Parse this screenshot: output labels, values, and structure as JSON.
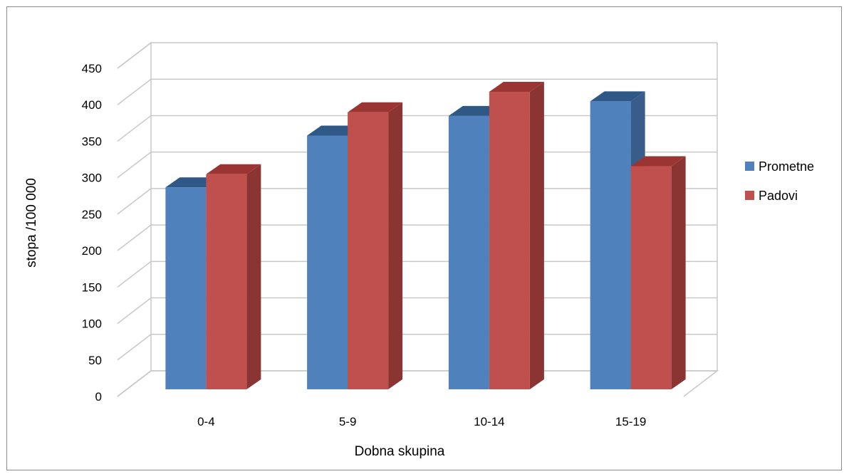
{
  "chart_data": {
    "type": "bar",
    "title": "",
    "xlabel": "Dobna skupina",
    "ylabel": "stopa /100 000",
    "categories": [
      "0-4",
      "5-9",
      "10-14",
      "15-19"
    ],
    "series": [
      {
        "name": "Prometne",
        "values": [
          277,
          348,
          375,
          395
        ]
      },
      {
        "name": "Padovi",
        "values": [
          295,
          380,
          408,
          306
        ]
      }
    ],
    "ylim": [
      0,
      450
    ],
    "yticks": [
      0,
      50,
      100,
      150,
      200,
      250,
      300,
      350,
      400,
      450
    ],
    "grid": true,
    "legend_position": "right",
    "style": "3d-clustered-column",
    "colors": {
      "Prometne": {
        "front": "#4f81bd",
        "side": "#385d8a",
        "top": "#2f5887"
      },
      "Padovi": {
        "front": "#c0504d",
        "side": "#8b3533",
        "top": "#9b3533"
      }
    }
  }
}
